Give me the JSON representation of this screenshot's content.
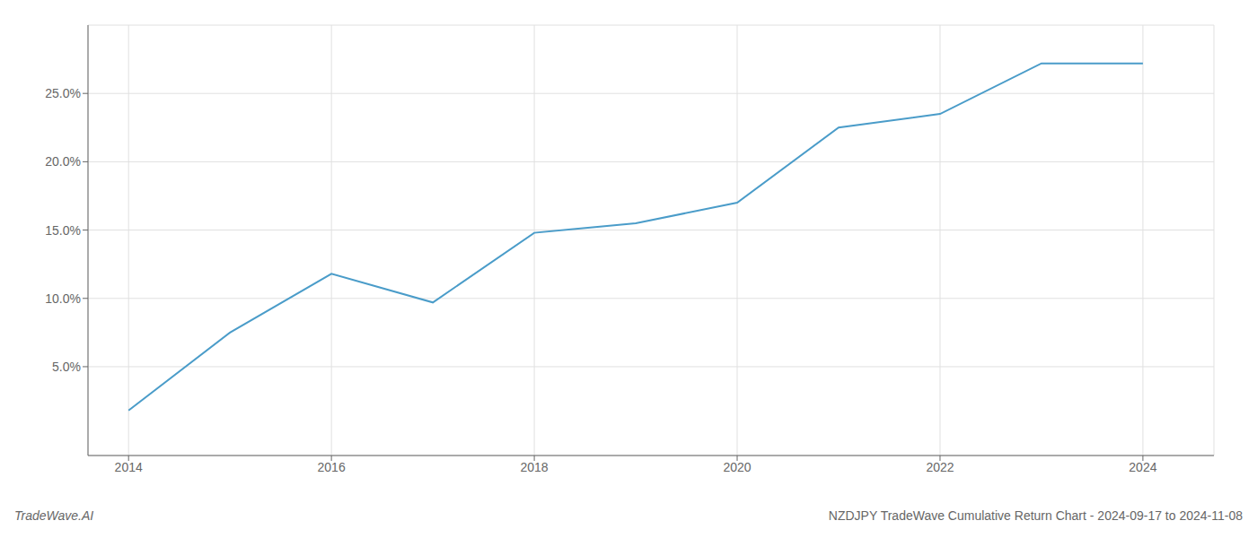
{
  "chart_data": {
    "type": "line",
    "title": "NZDJPY TradeWave Cumulative Return Chart - 2024-09-17 to 2024-11-08",
    "annotations": [
      "TradeWave.AI"
    ],
    "x": [
      2014,
      2015,
      2016,
      2017,
      2018,
      2019,
      2020,
      2021,
      2022,
      2023,
      2024
    ],
    "values": [
      1.8,
      7.5,
      11.8,
      9.7,
      14.8,
      15.5,
      17.0,
      22.5,
      23.5,
      27.2,
      27.2
    ],
    "color": "#4a9cc9",
    "xlim": [
      2013.6,
      2024.7
    ],
    "xticks": [
      2014,
      2016,
      2018,
      2020,
      2022,
      2024
    ],
    "ylim": [
      -1.5,
      30.0
    ],
    "yticks": [
      {
        "value": 5.0,
        "label": "5.0%"
      },
      {
        "value": 10.0,
        "label": "10.0%"
      },
      {
        "value": 15.0,
        "label": "15.0%"
      },
      {
        "value": 20.0,
        "label": "20.0%"
      },
      {
        "value": 25.0,
        "label": "25.0%"
      }
    ],
    "grid": true
  }
}
